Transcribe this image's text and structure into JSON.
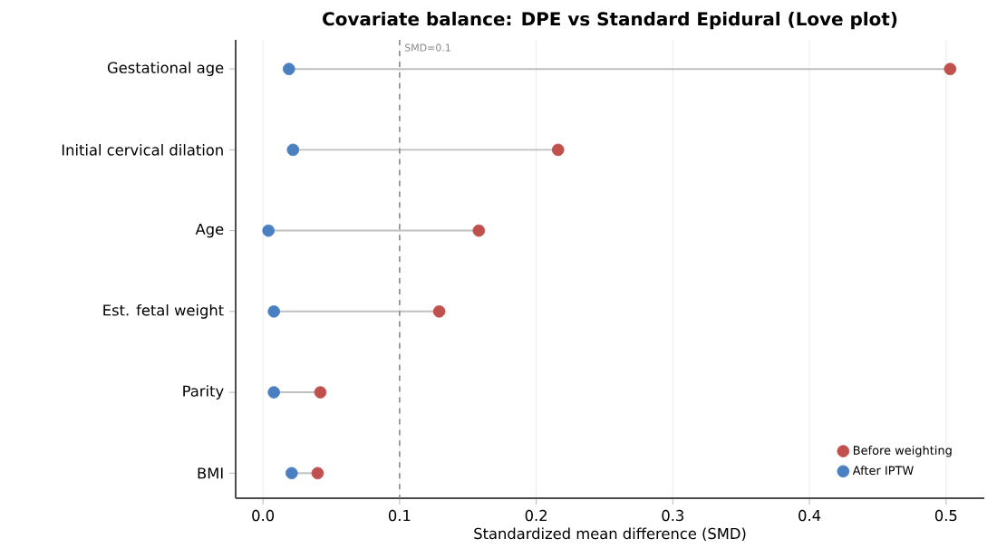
{
  "chart_data": {
    "type": "scatter",
    "orientation": "horizontal",
    "title": "Covariate balance: DPE vs Standard Epidural (Love plot)",
    "xlabel": "Standardized mean difference (SMD)",
    "categories": [
      "Gestational age",
      "Initial cervical dilation",
      "Age",
      "Est. fetal weight",
      "Parity",
      "BMI"
    ],
    "series": [
      {
        "name": "Before weighting",
        "color": "#c0504d",
        "values": [
          0.503,
          0.216,
          0.158,
          0.129,
          0.042,
          0.04
        ]
      },
      {
        "name": "After IPTW",
        "color": "#4a7fc1",
        "values": [
          0.019,
          0.022,
          0.004,
          0.008,
          0.008,
          0.021
        ]
      }
    ],
    "xlim": [
      -0.02,
      0.528
    ],
    "xticks": [
      {
        "value": 0.0,
        "label": "0.0"
      },
      {
        "value": 0.1,
        "label": "0.1"
      },
      {
        "value": 0.2,
        "label": "0.2"
      },
      {
        "value": 0.3,
        "label": "0.3"
      },
      {
        "value": 0.4,
        "label": "0.4"
      },
      {
        "value": 0.5,
        "label": "0.5"
      }
    ],
    "ref_lines": [
      {
        "axis": "x",
        "value": 0.1,
        "label": "SMD=0.1",
        "color": "#888888",
        "line_style": "dashed"
      }
    ],
    "grid": "x",
    "legend": "bottom right"
  }
}
